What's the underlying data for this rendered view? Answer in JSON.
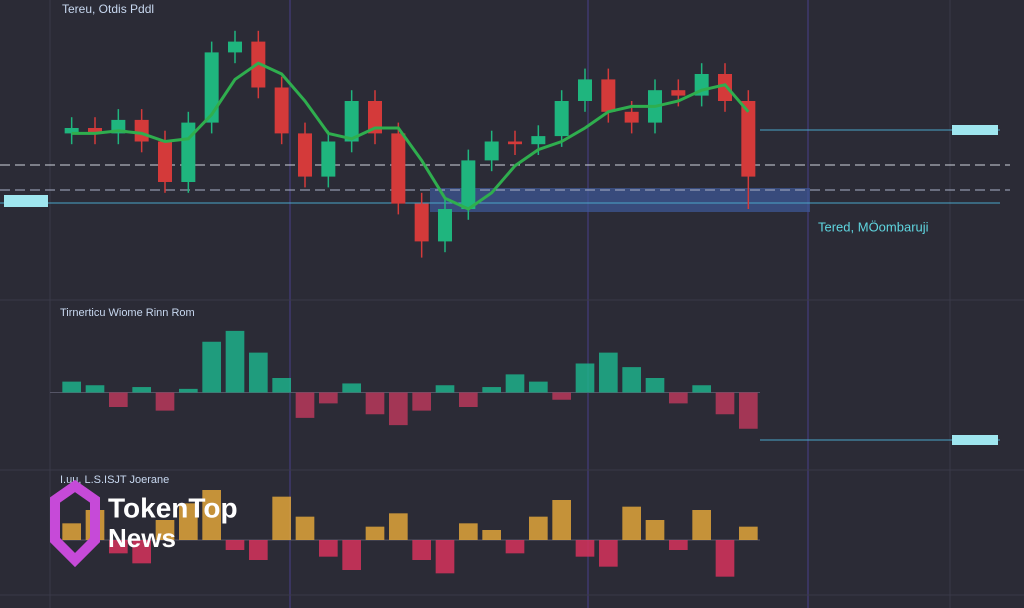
{
  "chart_data": [
    {
      "type": "candlestick",
      "title": "Tereu, Otdis Pddl",
      "annotation": "Tered, MÖombaruji",
      "open": [
        58,
        60,
        58,
        63,
        55,
        40,
        62,
        88,
        92,
        75,
        58,
        42,
        55,
        70,
        58,
        32,
        18,
        30,
        48,
        55,
        54,
        57,
        70,
        78,
        66,
        62,
        74,
        72,
        80,
        70
      ],
      "high": [
        64,
        64,
        67,
        67,
        59,
        66,
        92,
        96,
        96,
        79,
        62,
        59,
        74,
        74,
        62,
        36,
        34,
        52,
        59,
        59,
        61,
        74,
        82,
        82,
        70,
        78,
        78,
        84,
        84,
        74
      ],
      "low": [
        54,
        54,
        54,
        51,
        36,
        36,
        58,
        84,
        71,
        54,
        38,
        38,
        51,
        54,
        28,
        12,
        14,
        26,
        44,
        50,
        50,
        53,
        66,
        62,
        58,
        58,
        68,
        68,
        66,
        30
      ],
      "close": [
        60,
        58,
        63,
        55,
        40,
        62,
        88,
        92,
        75,
        58,
        42,
        55,
        70,
        58,
        32,
        18,
        30,
        48,
        55,
        54,
        57,
        70,
        78,
        66,
        62,
        74,
        72,
        80,
        70,
        42
      ],
      "ma": [
        58,
        58,
        59,
        58,
        55,
        56,
        65,
        78,
        84,
        80,
        70,
        58,
        56,
        60,
        60,
        48,
        34,
        30,
        36,
        46,
        52,
        55,
        60,
        66,
        68,
        68,
        70,
        74,
        76,
        66
      ],
      "up_color": "#1fb57e",
      "down_color": "#d43a3a",
      "ma_color": "#2fae4e",
      "ylim": [
        0,
        100
      ]
    },
    {
      "type": "bar",
      "title": "Tirnerticu Wiome Rinn Rom",
      "values": [
        6,
        4,
        -8,
        3,
        -10,
        2,
        28,
        34,
        22,
        8,
        -14,
        -6,
        5,
        -12,
        -18,
        -10,
        4,
        -8,
        3,
        10,
        6,
        -4,
        16,
        22,
        14,
        8,
        -6,
        4,
        -12,
        -20
      ],
      "pos_color": "#1db08a",
      "neg_color": "#b8385a",
      "ylim": [
        -40,
        40
      ]
    },
    {
      "type": "bar",
      "title": "I.uu, L.S.ISJT Joerane",
      "values": [
        10,
        18,
        -8,
        -14,
        12,
        22,
        30,
        -6,
        -12,
        26,
        14,
        -10,
        -18,
        8,
        16,
        -12,
        -20,
        10,
        6,
        -8,
        14,
        24,
        -10,
        -16,
        20,
        12,
        -6,
        18,
        -22,
        8
      ],
      "pos_color": "#e0a43a",
      "neg_color": "#d6335c",
      "ylim": [
        -30,
        30
      ]
    }
  ],
  "watermark": {
    "brand": "TokenTop",
    "sub": "News"
  }
}
